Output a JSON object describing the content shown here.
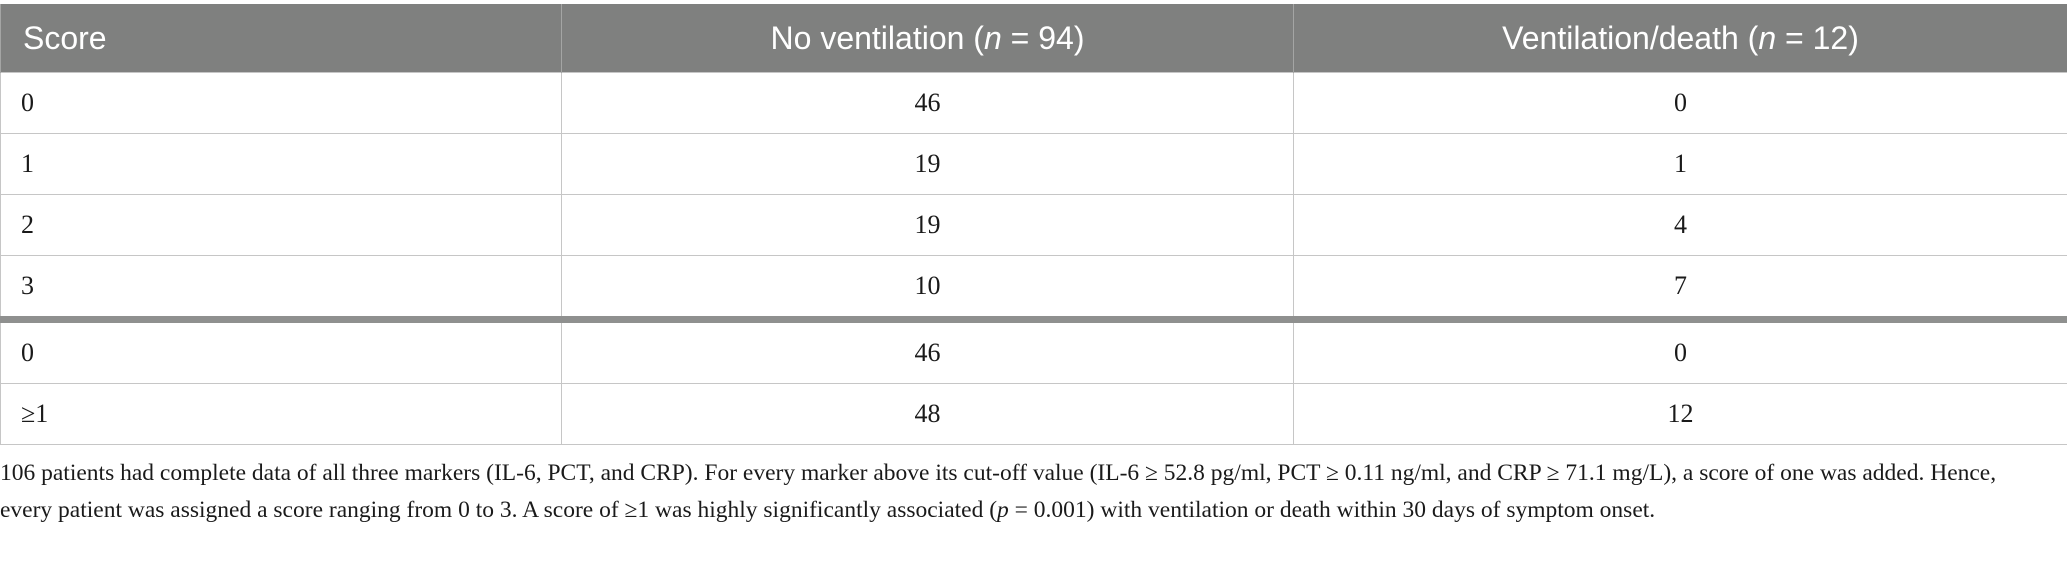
{
  "table": {
    "headers": {
      "score": "Score",
      "no_vent_prefix": "No ventilation (",
      "no_vent_n": "n",
      "no_vent_suffix": " = 94)",
      "vent_prefix": "Ventilation/death (",
      "vent_n": "n",
      "vent_suffix": " = 12)"
    },
    "rows": [
      {
        "score": "0",
        "no_ventilation": "46",
        "ventilation_death": "0"
      },
      {
        "score": "1",
        "no_ventilation": "19",
        "ventilation_death": "1"
      },
      {
        "score": "2",
        "no_ventilation": "19",
        "ventilation_death": "4"
      },
      {
        "score": "3",
        "no_ventilation": "10",
        "ventilation_death": "7"
      },
      {
        "score": "0",
        "no_ventilation": "46",
        "ventilation_death": "0"
      },
      {
        "score": "≥1",
        "no_ventilation": "48",
        "ventilation_death": "12"
      }
    ]
  },
  "footnote": {
    "part1": "106 patients had complete data of all three markers (IL-6, PCT, and CRP). For every marker above its cut-off value (IL-6 ≥ 52.8 pg/ml, PCT ≥ 0.11 ng/ml, and CRP ≥ 71.1 mg/L), a score of one was added. Hence, every patient was assigned a score ranging from 0 to 3. A score of ≥1 was highly significantly associated (",
    "p_symbol": "p",
    "part2": " = 0.001) with ventilation or death within 30 days of symptom onset."
  }
}
